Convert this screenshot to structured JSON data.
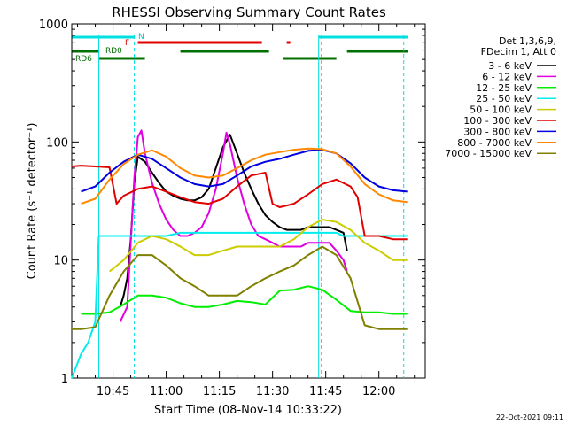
{
  "chart_data": {
    "type": "line",
    "title": "RHESSI Observing Summary Count Rates",
    "xlabel": "Start Time (08-Nov-14 10:33:22)",
    "ylabel": "Count Rate (s⁻¹ detector⁻¹)",
    "y_scale": "log",
    "ylim": [
      1,
      1000
    ],
    "xlim_minutes": [
      "10:33",
      "12:11"
    ],
    "x_tick_labels": [
      "10:45",
      "11:00",
      "11:15",
      "11:30",
      "11:45",
      "12:00"
    ],
    "y_tick_labels": [
      "1",
      "10",
      "100",
      "1000"
    ],
    "legend_header": [
      "Det 1,3,6,9,",
      "FDecim 1, Att 0"
    ],
    "timestamp": "22-Oct-2021 09:11",
    "flag_labels": {
      "night": "N",
      "flare": "F",
      "rd0": "RD0",
      "rd6": "RD6"
    },
    "vertical_markers": [
      "10:41",
      "10:51",
      "11:43",
      "11:43",
      "12:07"
    ],
    "flag_bars": [
      {
        "flag": "N",
        "color": "#00e0e0",
        "intervals": [
          [
            "10:33",
            "10:51"
          ],
          [
            "11:43",
            "12:11"
          ]
        ]
      },
      {
        "flag": "F",
        "color": "#e00000",
        "intervals": [
          [
            "10:52",
            "11:27"
          ],
          [
            "11:34",
            "11:35"
          ]
        ]
      },
      {
        "flag": "RD0",
        "color": "#007000",
        "intervals": [
          [
            "10:33",
            "10:41"
          ],
          [
            "11:04",
            "11:29"
          ],
          [
            "11:51",
            "12:11"
          ]
        ]
      },
      {
        "flag": "RD6",
        "color": "#007000",
        "intervals": [
          [
            "10:41",
            "10:54"
          ],
          [
            "11:33",
            "11:48"
          ]
        ]
      }
    ],
    "series": [
      {
        "name": "3 - 6 keV",
        "color": "#000000",
        "x": [
          "10:47",
          "10:48",
          "10:49",
          "10:50",
          "10:51",
          "10:52",
          "10:54",
          "10:56",
          "10:58",
          "11:00",
          "11:02",
          "11:04",
          "11:06",
          "11:08",
          "11:10",
          "11:12",
          "11:14",
          "11:16",
          "11:18",
          "11:20",
          "11:22",
          "11:24",
          "11:26",
          "11:28",
          "11:30",
          "11:32",
          "11:34",
          "11:36",
          "11:38",
          "11:40",
          "11:42",
          "11:44",
          "11:46",
          "11:48",
          "11:50",
          "11:51"
        ],
        "values": [
          4,
          5,
          7,
          15,
          45,
          75,
          68,
          55,
          45,
          38,
          35,
          33,
          32,
          32,
          34,
          40,
          60,
          90,
          115,
          80,
          55,
          40,
          30,
          24,
          21,
          19,
          18,
          18,
          18,
          19,
          19,
          19,
          19,
          18,
          17,
          12
        ]
      },
      {
        "name": "6 - 12 keV",
        "color": "#e000e0",
        "x": [
          "10:47",
          "10:49",
          "10:51",
          "10:52",
          "10:53",
          "10:54",
          "10:56",
          "10:58",
          "11:00",
          "11:02",
          "11:04",
          "11:06",
          "11:08",
          "11:10",
          "11:12",
          "11:14",
          "11:16",
          "11:17",
          "11:18",
          "11:20",
          "11:22",
          "11:24",
          "11:26",
          "11:28",
          "11:30",
          "11:32",
          "11:34",
          "11:36",
          "11:38",
          "11:40",
          "11:42",
          "11:44",
          "11:46",
          "11:48",
          "11:50",
          "11:51"
        ],
        "values": [
          3,
          4,
          50,
          110,
          125,
          80,
          45,
          30,
          22,
          18,
          16,
          16,
          17,
          19,
          25,
          40,
          80,
          120,
          95,
          50,
          30,
          20,
          16,
          15,
          14,
          13,
          13,
          13,
          13,
          14,
          14,
          14,
          14,
          12,
          10,
          8
        ]
      },
      {
        "name": "12 - 25 keV",
        "color": "#00ee00",
        "x": [
          "10:36",
          "10:40",
          "10:44",
          "10:48",
          "10:52",
          "10:56",
          "11:00",
          "11:04",
          "11:08",
          "11:12",
          "11:16",
          "11:20",
          "11:24",
          "11:28",
          "11:32",
          "11:36",
          "11:40",
          "11:44",
          "11:48",
          "11:52",
          "11:56",
          "12:00",
          "12:04",
          "12:08"
        ],
        "values": [
          3.5,
          3.5,
          3.6,
          4.2,
          5.0,
          5.0,
          4.8,
          4.3,
          4.0,
          4.0,
          4.2,
          4.5,
          4.4,
          4.2,
          5.5,
          5.6,
          6.0,
          5.6,
          4.6,
          3.7,
          3.6,
          3.6,
          3.5,
          3.5
        ]
      },
      {
        "name": "25 - 50 keV",
        "color": "#00eeee",
        "x": [
          "10:33",
          "10:36",
          "10:38",
          "10:40",
          "10:41",
          "10:44",
          "10:48",
          "10:52",
          "10:56",
          "11:00",
          "11:04",
          "11:08",
          "11:12",
          "11:16",
          "11:20",
          "11:24",
          "11:28",
          "11:32",
          "11:36",
          "11:40",
          "11:44",
          "11:48",
          "11:50",
          "11:52",
          "11:56",
          "12:00",
          "12:04",
          "12:08"
        ],
        "values": [
          1,
          1.6,
          2,
          3,
          16,
          16,
          16,
          16,
          16,
          16,
          17,
          17,
          17,
          17,
          17,
          17,
          17,
          17,
          17,
          17,
          17,
          17,
          16,
          16,
          16,
          16,
          16,
          16
        ]
      },
      {
        "name": "50 - 100 keV",
        "color": "#cccc00",
        "x": [
          "10:44",
          "10:48",
          "10:52",
          "10:56",
          "11:00",
          "11:04",
          "11:08",
          "11:12",
          "11:16",
          "11:20",
          "11:24",
          "11:28",
          "11:32",
          "11:36",
          "11:40",
          "11:44",
          "11:48",
          "11:52",
          "11:56",
          "12:00",
          "12:04",
          "12:08"
        ],
        "values": [
          8,
          10,
          14,
          16,
          15,
          13,
          11,
          11,
          12,
          13,
          13,
          13,
          13,
          15,
          19,
          22,
          21,
          18,
          14,
          12,
          10,
          10
        ]
      },
      {
        "name": "100 - 300 keV",
        "color": "#e00000",
        "x": [
          "10:33",
          "10:36",
          "10:40",
          "10:44",
          "10:46",
          "10:48",
          "10:52",
          "10:56",
          "11:00",
          "11:04",
          "11:08",
          "11:12",
          "11:16",
          "11:20",
          "11:24",
          "11:28",
          "11:30",
          "11:32",
          "11:36",
          "11:40",
          "11:44",
          "11:48",
          "11:52",
          "11:54",
          "11:56",
          "12:00",
          "12:04",
          "12:08"
        ],
        "values": [
          62,
          63,
          62,
          61,
          30,
          35,
          40,
          42,
          38,
          34,
          31,
          30,
          33,
          42,
          52,
          55,
          30,
          28,
          30,
          36,
          44,
          48,
          42,
          34,
          16,
          16,
          15,
          15
        ]
      },
      {
        "name": "300 - 800 keV",
        "color": "#0000e0",
        "x": [
          "10:36",
          "10:40",
          "10:44",
          "10:48",
          "10:52",
          "10:56",
          "11:00",
          "11:04",
          "11:08",
          "11:12",
          "11:16",
          "11:20",
          "11:24",
          "11:28",
          "11:32",
          "11:36",
          "11:40",
          "11:44",
          "11:48",
          "11:52",
          "11:56",
          "12:00",
          "12:04",
          "12:08"
        ],
        "values": [
          38,
          42,
          55,
          68,
          78,
          72,
          60,
          50,
          44,
          42,
          44,
          52,
          62,
          68,
          72,
          78,
          84,
          86,
          80,
          66,
          50,
          42,
          39,
          38
        ]
      },
      {
        "name": "800 - 7000 keV",
        "color": "#ff8800",
        "x": [
          "10:36",
          "10:40",
          "10:44",
          "10:48",
          "10:52",
          "10:56",
          "11:00",
          "11:04",
          "11:08",
          "11:12",
          "11:16",
          "11:20",
          "11:24",
          "11:28",
          "11:32",
          "11:36",
          "11:40",
          "11:44",
          "11:48",
          "11:52",
          "11:56",
          "12:00",
          "12:04",
          "12:08"
        ],
        "values": [
          30,
          33,
          48,
          65,
          78,
          85,
          75,
          60,
          52,
          50,
          52,
          60,
          70,
          78,
          82,
          86,
          88,
          87,
          80,
          62,
          44,
          36,
          32,
          31
        ]
      },
      {
        "name": "7000 - 15000 keV",
        "color": "#808000",
        "x": [
          "10:33",
          "10:36",
          "10:40",
          "10:44",
          "10:48",
          "10:52",
          "10:56",
          "11:00",
          "11:04",
          "11:08",
          "11:12",
          "11:16",
          "11:20",
          "11:24",
          "11:28",
          "11:32",
          "11:36",
          "11:40",
          "11:44",
          "11:48",
          "11:52",
          "11:56",
          "12:00",
          "12:04",
          "12:08"
        ],
        "values": [
          2.6,
          2.6,
          2.7,
          5,
          8,
          11,
          11,
          9,
          7,
          6,
          5,
          5,
          5,
          6,
          7,
          8,
          9,
          11,
          13,
          11,
          7,
          2.8,
          2.6,
          2.6,
          2.6
        ]
      }
    ]
  }
}
